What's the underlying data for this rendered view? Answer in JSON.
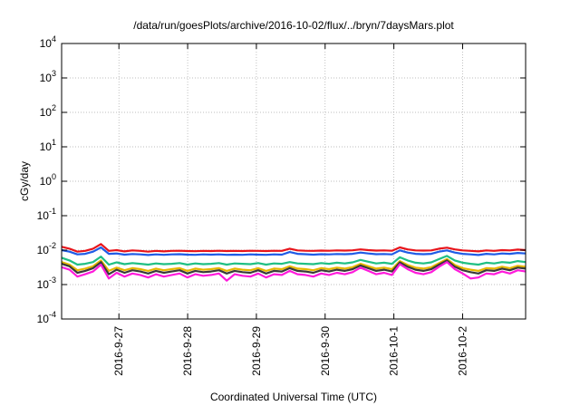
{
  "chart_data": {
    "type": "line",
    "title": "/data/run/goesPlots/archive/2016-10-02/flux/../bryn/7daysMars.plot",
    "xlabel": "Coordinated Universal Time (UTC)",
    "ylabel": "cGy/day",
    "yscale": "log",
    "ylim": [
      0.0001,
      10000
    ],
    "y_ticks": [
      {
        "value": 0.0001,
        "base": "10",
        "exp": "-4"
      },
      {
        "value": 0.001,
        "base": "10",
        "exp": "-3"
      },
      {
        "value": 0.01,
        "base": "10",
        "exp": "-2"
      },
      {
        "value": 0.1,
        "base": "10",
        "exp": "-1"
      },
      {
        "value": 1,
        "base": "10",
        "exp": "0"
      },
      {
        "value": 10,
        "base": "10",
        "exp": "1"
      },
      {
        "value": 100,
        "base": "10",
        "exp": "2"
      },
      {
        "value": 1000,
        "base": "10",
        "exp": "3"
      },
      {
        "value": 10000,
        "base": "10",
        "exp": "4"
      }
    ],
    "xlim": [
      "2016-09-26T04:00",
      "2016-10-02T22:00"
    ],
    "x_ticks": [
      "2016-9-27",
      "2016-9-28",
      "2016-9-29",
      "2016-9-30",
      "2016-10-1",
      "2016-10-2"
    ],
    "x_tick_dates": [
      "2016-09-27",
      "2016-09-28",
      "2016-09-29",
      "2016-09-30",
      "2016-10-01",
      "2016-10-02"
    ],
    "grid": true,
    "series": [
      {
        "color": "#e8141b",
        "values": [
          0.0125,
          0.011,
          0.009,
          0.0095,
          0.011,
          0.015,
          0.0095,
          0.01,
          0.0092,
          0.0098,
          0.0095,
          0.009,
          0.0095,
          0.0092,
          0.0095,
          0.0096,
          0.0094,
          0.0093,
          0.0095,
          0.0094,
          0.0096,
          0.0094,
          0.0095,
          0.0094,
          0.0096,
          0.0095,
          0.0094,
          0.0096,
          0.0095,
          0.011,
          0.0098,
          0.0096,
          0.0095,
          0.0097,
          0.0096,
          0.0098,
          0.0097,
          0.0099,
          0.0105,
          0.01,
          0.0097,
          0.0098,
          0.0096,
          0.012,
          0.0105,
          0.0098,
          0.0097,
          0.0098,
          0.011,
          0.0118,
          0.0105,
          0.0098,
          0.0095,
          0.0092,
          0.0098,
          0.0095,
          0.01,
          0.0098,
          0.0104,
          0.01
        ]
      },
      {
        "color": "#1f5be6",
        "values": [
          0.01,
          0.009,
          0.0075,
          0.0078,
          0.009,
          0.012,
          0.0078,
          0.008,
          0.0074,
          0.0077,
          0.0075,
          0.0072,
          0.0075,
          0.0073,
          0.0075,
          0.0076,
          0.0074,
          0.0073,
          0.0075,
          0.0074,
          0.0075,
          0.0073,
          0.0074,
          0.0073,
          0.0075,
          0.0074,
          0.0073,
          0.0075,
          0.0074,
          0.0088,
          0.0078,
          0.0076,
          0.0074,
          0.0076,
          0.0075,
          0.0077,
          0.0076,
          0.0078,
          0.0085,
          0.008,
          0.0076,
          0.0077,
          0.0075,
          0.0098,
          0.0085,
          0.0078,
          0.0076,
          0.0078,
          0.009,
          0.0098,
          0.0085,
          0.0078,
          0.0075,
          0.0072,
          0.0078,
          0.0075,
          0.008,
          0.0078,
          0.0083,
          0.008
        ]
      },
      {
        "color": "#1fbf83",
        "values": [
          0.006,
          0.005,
          0.0038,
          0.004,
          0.0045,
          0.0065,
          0.0038,
          0.0044,
          0.0039,
          0.0042,
          0.004,
          0.0038,
          0.0041,
          0.0039,
          0.004,
          0.0042,
          0.0038,
          0.0041,
          0.0039,
          0.004,
          0.0042,
          0.0038,
          0.0041,
          0.004,
          0.0039,
          0.0042,
          0.0038,
          0.0041,
          0.004,
          0.0045,
          0.0041,
          0.004,
          0.0039,
          0.0042,
          0.004,
          0.0043,
          0.0041,
          0.0044,
          0.0052,
          0.0046,
          0.0041,
          0.0043,
          0.004,
          0.0062,
          0.005,
          0.0043,
          0.0041,
          0.0044,
          0.0055,
          0.0068,
          0.005,
          0.0043,
          0.004,
          0.0038,
          0.0043,
          0.0041,
          0.0045,
          0.0043,
          0.0048,
          0.0045
        ]
      },
      {
        "color": "#e6b800",
        "values": [
          0.0045,
          0.0038,
          0.0026,
          0.0029,
          0.0034,
          0.005,
          0.0025,
          0.0031,
          0.0026,
          0.003,
          0.0028,
          0.0025,
          0.0029,
          0.0026,
          0.0028,
          0.003,
          0.0025,
          0.0029,
          0.0027,
          0.0028,
          0.003,
          0.0025,
          0.0029,
          0.0027,
          0.0026,
          0.003,
          0.0025,
          0.0029,
          0.0028,
          0.0034,
          0.0029,
          0.0028,
          0.0026,
          0.003,
          0.0028,
          0.0031,
          0.0029,
          0.0032,
          0.004,
          0.0034,
          0.0029,
          0.0031,
          0.0028,
          0.0048,
          0.0037,
          0.0031,
          0.0029,
          0.0032,
          0.0042,
          0.0055,
          0.0037,
          0.003,
          0.0027,
          0.0025,
          0.003,
          0.0029,
          0.0033,
          0.003,
          0.0035,
          0.0033
        ]
      },
      {
        "color": "#3a3a3a",
        "values": [
          0.004,
          0.0034,
          0.0022,
          0.0025,
          0.003,
          0.0045,
          0.002,
          0.0027,
          0.0022,
          0.0026,
          0.0024,
          0.0021,
          0.0025,
          0.0022,
          0.0024,
          0.0026,
          0.0021,
          0.0025,
          0.0023,
          0.0024,
          0.0026,
          0.0021,
          0.0025,
          0.0023,
          0.0022,
          0.0026,
          0.0021,
          0.0025,
          0.0024,
          0.003,
          0.0025,
          0.0024,
          0.0022,
          0.0026,
          0.0024,
          0.0027,
          0.0025,
          0.0028,
          0.0036,
          0.003,
          0.0025,
          0.0027,
          0.0024,
          0.0044,
          0.0033,
          0.0027,
          0.0025,
          0.0028,
          0.0038,
          0.005,
          0.0033,
          0.0026,
          0.0023,
          0.0021,
          0.0026,
          0.0025,
          0.0029,
          0.0026,
          0.0031,
          0.0029
        ]
      },
      {
        "color": "#ff1adb",
        "values": [
          0.0032,
          0.0027,
          0.0017,
          0.002,
          0.0024,
          0.0038,
          0.0015,
          0.0022,
          0.0017,
          0.0021,
          0.0019,
          0.0016,
          0.002,
          0.0017,
          0.0019,
          0.0021,
          0.0016,
          0.002,
          0.0018,
          0.0019,
          0.0021,
          0.0013,
          0.002,
          0.0018,
          0.0017,
          0.0021,
          0.0016,
          0.002,
          0.0019,
          0.0025,
          0.002,
          0.0019,
          0.0017,
          0.0021,
          0.0019,
          0.0022,
          0.002,
          0.0023,
          0.0031,
          0.0025,
          0.002,
          0.0022,
          0.0019,
          0.0039,
          0.0028,
          0.0022,
          0.002,
          0.0023,
          0.0033,
          0.0045,
          0.0028,
          0.0021,
          0.0015,
          0.0016,
          0.0021,
          0.002,
          0.0024,
          0.0021,
          0.0026,
          0.0024
        ]
      }
    ]
  }
}
